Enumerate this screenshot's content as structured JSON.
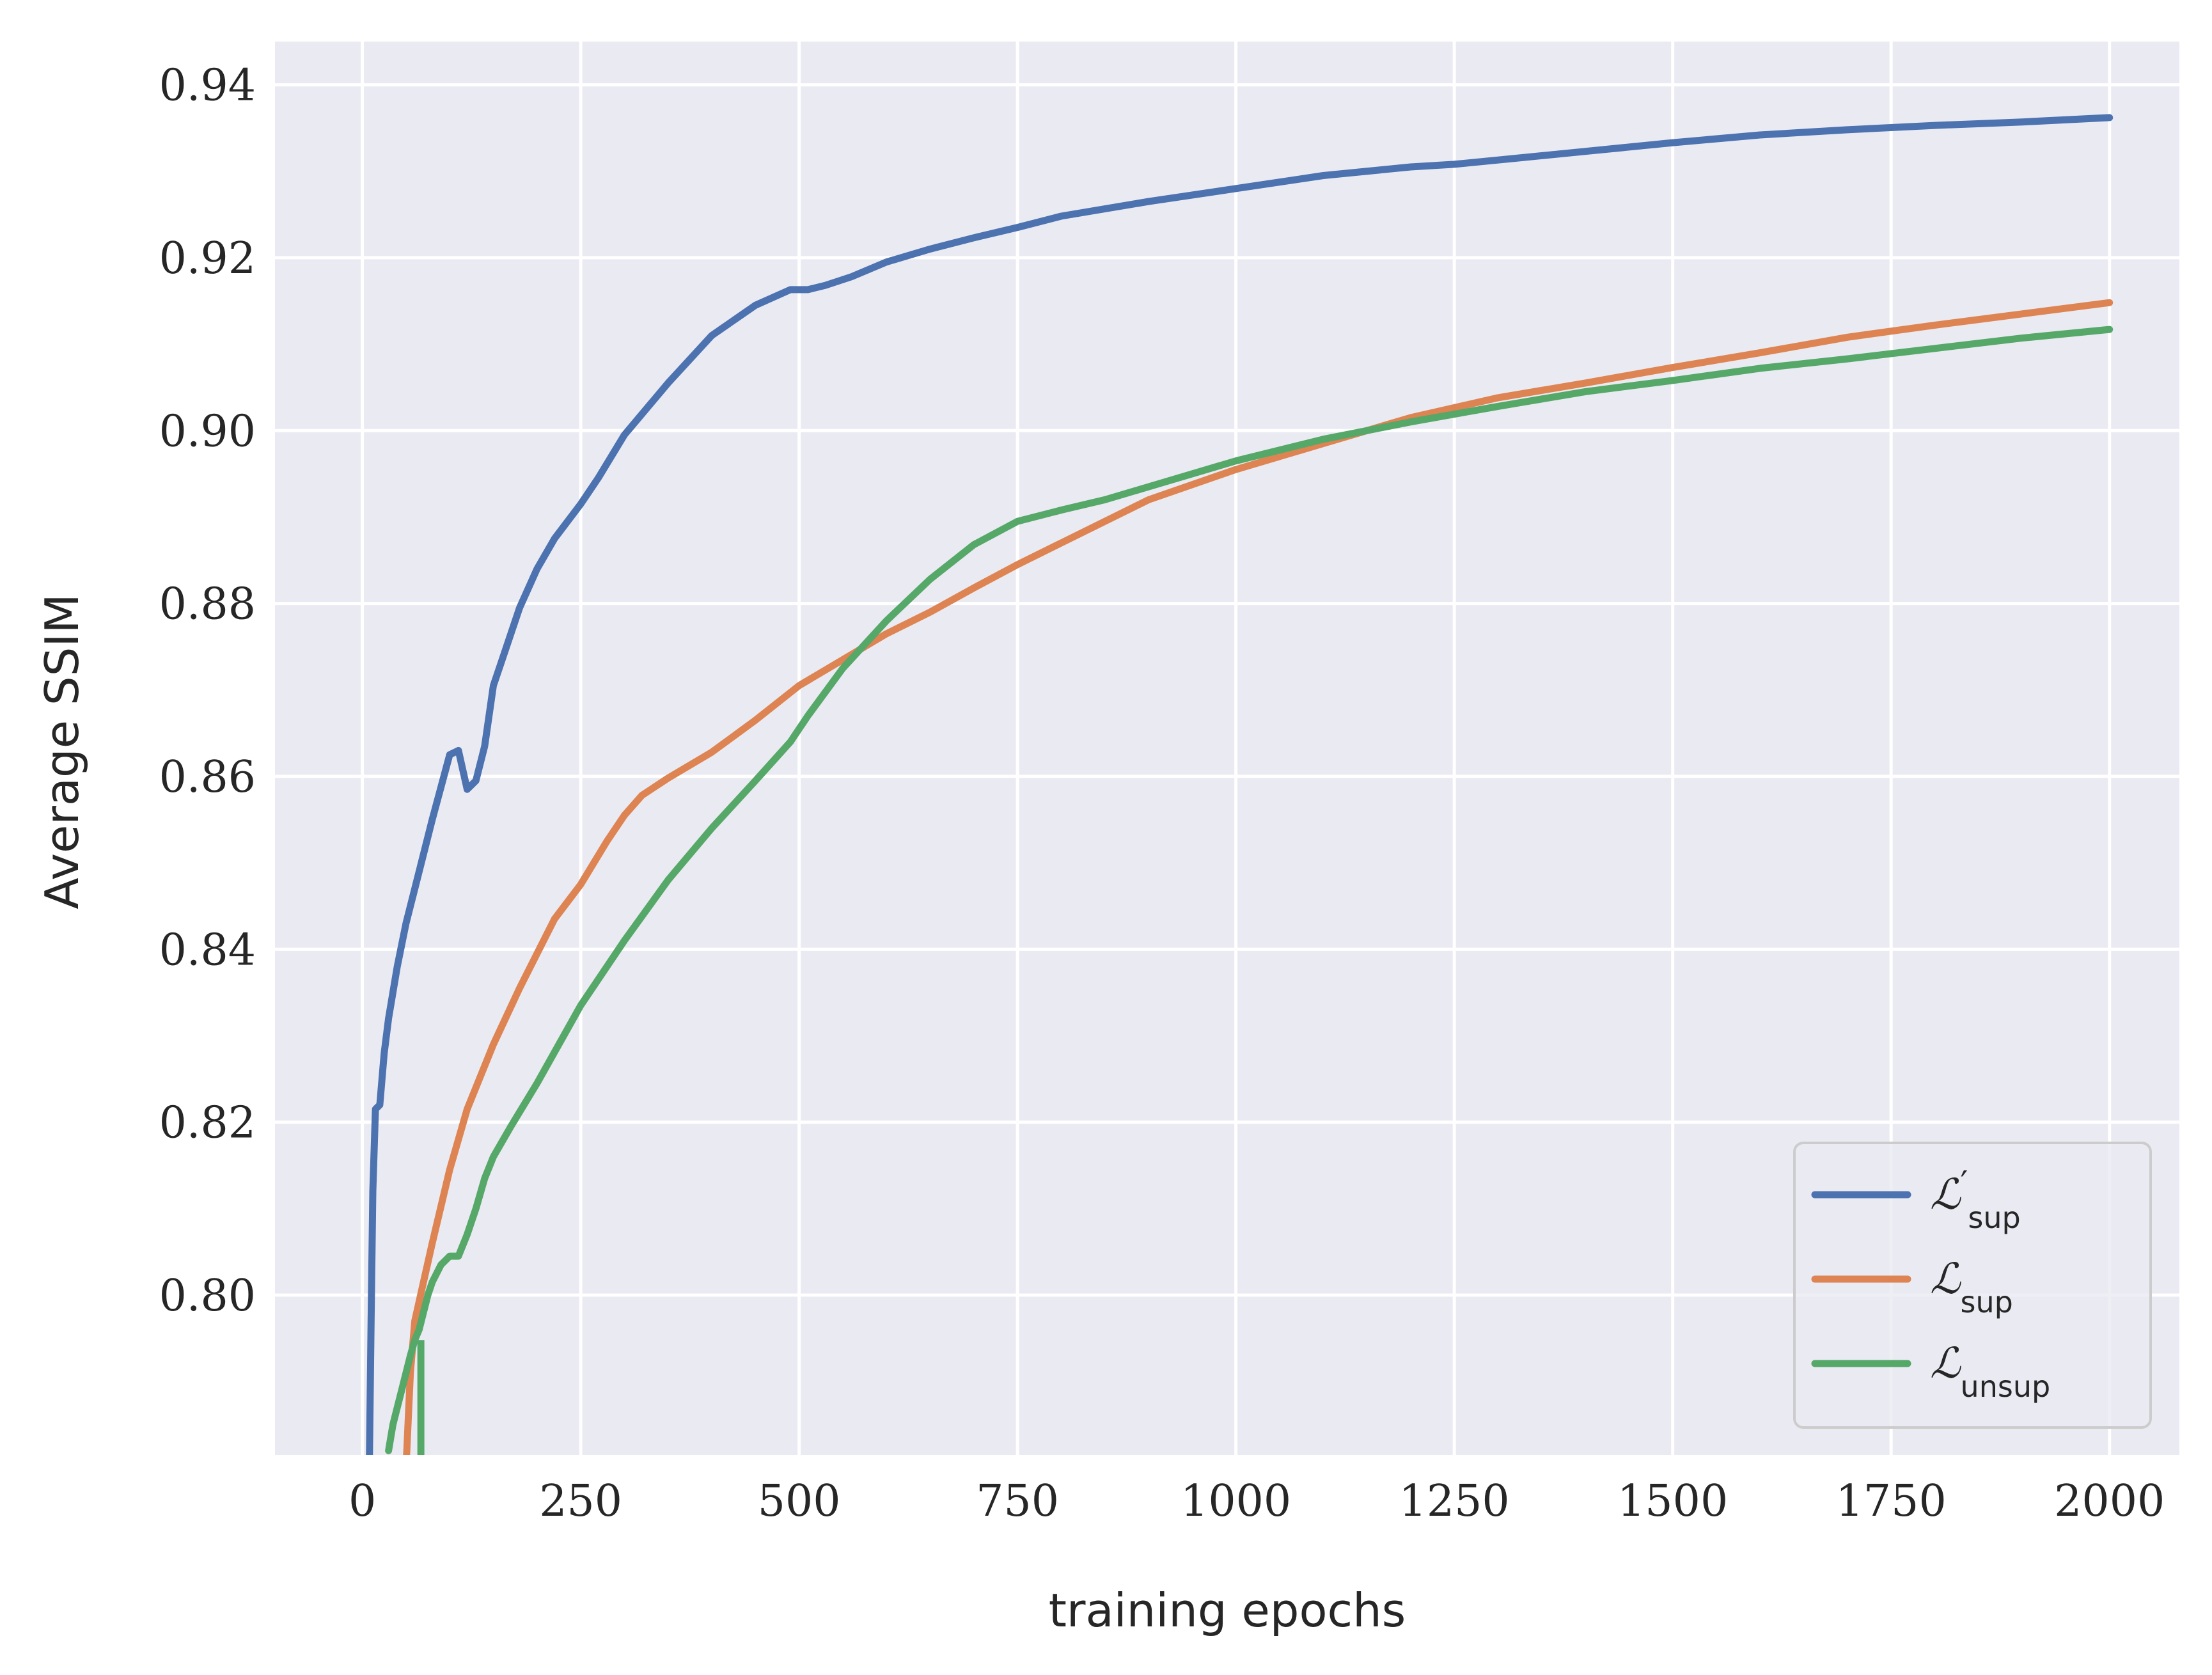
{
  "chart_data": {
    "type": "line",
    "title": "",
    "xlabel": "training epochs",
    "ylabel": "Average SSIM",
    "xlim": [
      -100,
      2080
    ],
    "ylim": [
      0.7815,
      0.945
    ],
    "xticks": [
      0,
      250,
      500,
      750,
      1000,
      1250,
      1500,
      1750,
      2000
    ],
    "xtick_labels": [
      "0",
      "250",
      "500",
      "750",
      "1000",
      "1250",
      "1500",
      "1750",
      "2000"
    ],
    "yticks": [
      0.8,
      0.82,
      0.84,
      0.86,
      0.88,
      0.9,
      0.92,
      0.94
    ],
    "ytick_labels": [
      "0.80",
      "0.82",
      "0.84",
      "0.86",
      "0.88",
      "0.90",
      "0.92",
      "0.94"
    ],
    "grid": true,
    "legend_position": "bottom-right",
    "series": [
      {
        "name": "ℒ′sup",
        "legend_base": "ℒ",
        "legend_prime": "′",
        "legend_sub": "sup",
        "color": "#4c72b0",
        "x": [
          8,
          10,
          12,
          15,
          20,
          25,
          30,
          40,
          50,
          60,
          80,
          100,
          110,
          120,
          130,
          140,
          150,
          160,
          180,
          200,
          220,
          250,
          270,
          300,
          350,
          400,
          450,
          490,
          510,
          530,
          560,
          600,
          650,
          700,
          750,
          800,
          900,
          1000,
          1100,
          1200,
          1250,
          1300,
          1400,
          1500,
          1600,
          1700,
          1800,
          1900,
          2000
        ],
        "y": [
          0.78,
          0.797,
          0.812,
          0.8215,
          0.822,
          0.828,
          0.832,
          0.838,
          0.843,
          0.847,
          0.855,
          0.8625,
          0.863,
          0.8585,
          0.8595,
          0.8635,
          0.8705,
          0.8735,
          0.8795,
          0.884,
          0.8875,
          0.8915,
          0.8945,
          0.8995,
          0.9055,
          0.911,
          0.9145,
          0.9163,
          0.9163,
          0.9168,
          0.9178,
          0.9195,
          0.921,
          0.9223,
          0.9235,
          0.9248,
          0.9265,
          0.928,
          0.9295,
          0.9305,
          0.9308,
          0.9313,
          0.9323,
          0.9333,
          0.9342,
          0.9348,
          0.9353,
          0.9357,
          0.9362
        ]
      },
      {
        "name": "ℒsup",
        "legend_base": "ℒ",
        "legend_prime": "",
        "legend_sub": "sup",
        "color": "#dd8452",
        "x": [
          50,
          55,
          60,
          70,
          80,
          100,
          120,
          150,
          180,
          200,
          220,
          250,
          280,
          300,
          320,
          350,
          400,
          450,
          500,
          550,
          600,
          650,
          700,
          750,
          800,
          900,
          1000,
          1100,
          1200,
          1300,
          1400,
          1500,
          1600,
          1700,
          1800,
          1900,
          2000
        ],
        "y": [
          0.78,
          0.791,
          0.797,
          0.8015,
          0.806,
          0.8145,
          0.8215,
          0.829,
          0.8355,
          0.8395,
          0.8435,
          0.8475,
          0.8525,
          0.8555,
          0.8578,
          0.8598,
          0.8628,
          0.8665,
          0.8705,
          0.8735,
          0.8765,
          0.879,
          0.8818,
          0.8845,
          0.887,
          0.892,
          0.8955,
          0.8985,
          0.9015,
          0.9038,
          0.9055,
          0.9073,
          0.909,
          0.9108,
          0.9122,
          0.9135,
          0.9148
        ]
      },
      {
        "name": "ℒunsup",
        "legend_base": "ℒ",
        "legend_prime": "",
        "legend_sub": "unsup",
        "color": "#55a868",
        "x": [
          30,
          35,
          40,
          45,
          50,
          55,
          60,
          65,
          70,
          75,
          80,
          90,
          100,
          110,
          120,
          130,
          140,
          150,
          170,
          200,
          250,
          300,
          350,
          400,
          450,
          490,
          510,
          550,
          600,
          650,
          700,
          750,
          800,
          850,
          900,
          1000,
          1100,
          1200,
          1300,
          1400,
          1500,
          1600,
          1700,
          1800,
          1900,
          2000
        ],
        "y": [
          0.782,
          0.785,
          0.787,
          0.789,
          0.791,
          0.793,
          0.7948,
          0.796,
          0.798,
          0.8,
          0.8015,
          0.8035,
          0.8045,
          0.8045,
          0.807,
          0.81,
          0.8135,
          0.816,
          0.8195,
          0.8245,
          0.8335,
          0.841,
          0.848,
          0.854,
          0.8595,
          0.864,
          0.867,
          0.8725,
          0.878,
          0.8828,
          0.8868,
          0.8895,
          0.8908,
          0.892,
          0.8935,
          0.8965,
          0.899,
          0.901,
          0.9028,
          0.9045,
          0.9058,
          0.9072,
          0.9083,
          0.9095,
          0.9107,
          0.9117
        ]
      }
    ],
    "dropout_segments": [
      {
        "series_index": 2,
        "x": 67,
        "y_from": 0.7948,
        "y_to": 0.7815
      }
    ]
  }
}
